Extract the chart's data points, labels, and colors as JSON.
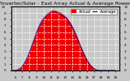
{
  "title": "Energy/Inverter/Solar - East Array Actual & Average Power Output",
  "bg_color": "#c8c8c8",
  "plot_bg_color": "#c8c8c8",
  "fill_color": "#ee0000",
  "line_color": "#cc0000",
  "avg_line_color": "#0000bb",
  "grid_color": "#ffffff",
  "text_color": "#000000",
  "legend_actual_label": "Actual",
  "legend_avg_label": "Average",
  "legend_actual_color": "#ee0000",
  "legend_avg_color": "#0000bb",
  "ylim": [
    0,
    10
  ],
  "xlim": [
    5.5,
    20.5
  ],
  "x_ticks": [
    6,
    7,
    8,
    9,
    10,
    11,
    12,
    13,
    14,
    15,
    16,
    17,
    18,
    19,
    20
  ],
  "y_ticks": [
    0,
    1,
    2,
    3,
    4,
    5,
    6,
    7,
    8,
    9,
    10
  ],
  "hours": [
    5.5,
    5.75,
    6.0,
    6.25,
    6.5,
    6.75,
    7.0,
    7.25,
    7.5,
    7.75,
    8.0,
    8.25,
    8.5,
    8.75,
    9.0,
    9.25,
    9.5,
    9.75,
    10.0,
    10.25,
    10.5,
    10.75,
    11.0,
    11.25,
    11.5,
    11.75,
    12.0,
    12.25,
    12.5,
    12.75,
    13.0,
    13.25,
    13.5,
    13.75,
    14.0,
    14.25,
    14.5,
    14.75,
    15.0,
    15.25,
    15.5,
    15.75,
    16.0,
    16.25,
    16.5,
    16.75,
    17.0,
    17.25,
    17.5,
    17.75,
    18.0,
    18.25,
    18.5,
    18.75,
    19.0,
    19.25,
    19.5,
    19.75,
    20.0
  ],
  "actual_power": [
    0.0,
    0.0,
    0.02,
    0.08,
    0.2,
    0.4,
    0.7,
    1.1,
    1.6,
    2.2,
    2.9,
    3.7,
    4.5,
    5.3,
    6.1,
    6.8,
    7.4,
    7.9,
    8.3,
    8.6,
    8.9,
    9.1,
    9.3,
    9.4,
    9.4,
    9.3,
    9.2,
    9.1,
    8.9,
    8.7,
    8.5,
    8.2,
    7.8,
    7.4,
    6.9,
    6.3,
    5.7,
    5.0,
    4.3,
    3.6,
    2.9,
    2.3,
    1.8,
    1.3,
    0.9,
    0.6,
    0.35,
    0.18,
    0.08,
    0.02,
    0.0,
    0.0,
    0.0,
    0.0,
    0.0,
    0.0,
    0.0,
    0.0,
    0.0
  ],
  "avg_power": [
    0.0,
    0.0,
    0.01,
    0.06,
    0.18,
    0.35,
    0.65,
    1.05,
    1.55,
    2.1,
    2.8,
    3.6,
    4.35,
    5.1,
    5.9,
    6.6,
    7.2,
    7.7,
    8.1,
    8.4,
    8.7,
    8.9,
    9.1,
    9.2,
    9.2,
    9.1,
    9.0,
    8.9,
    8.7,
    8.5,
    8.3,
    8.0,
    7.6,
    7.2,
    6.7,
    6.1,
    5.5,
    4.8,
    4.1,
    3.4,
    2.8,
    2.2,
    1.6,
    1.2,
    0.8,
    0.5,
    0.28,
    0.12,
    0.04,
    0.01,
    0.0,
    0.0,
    0.0,
    0.0,
    0.0,
    0.0,
    0.0,
    0.0,
    0.0
  ],
  "title_fontsize": 4.5,
  "tick_fontsize": 3.0,
  "legend_fontsize": 3.5
}
